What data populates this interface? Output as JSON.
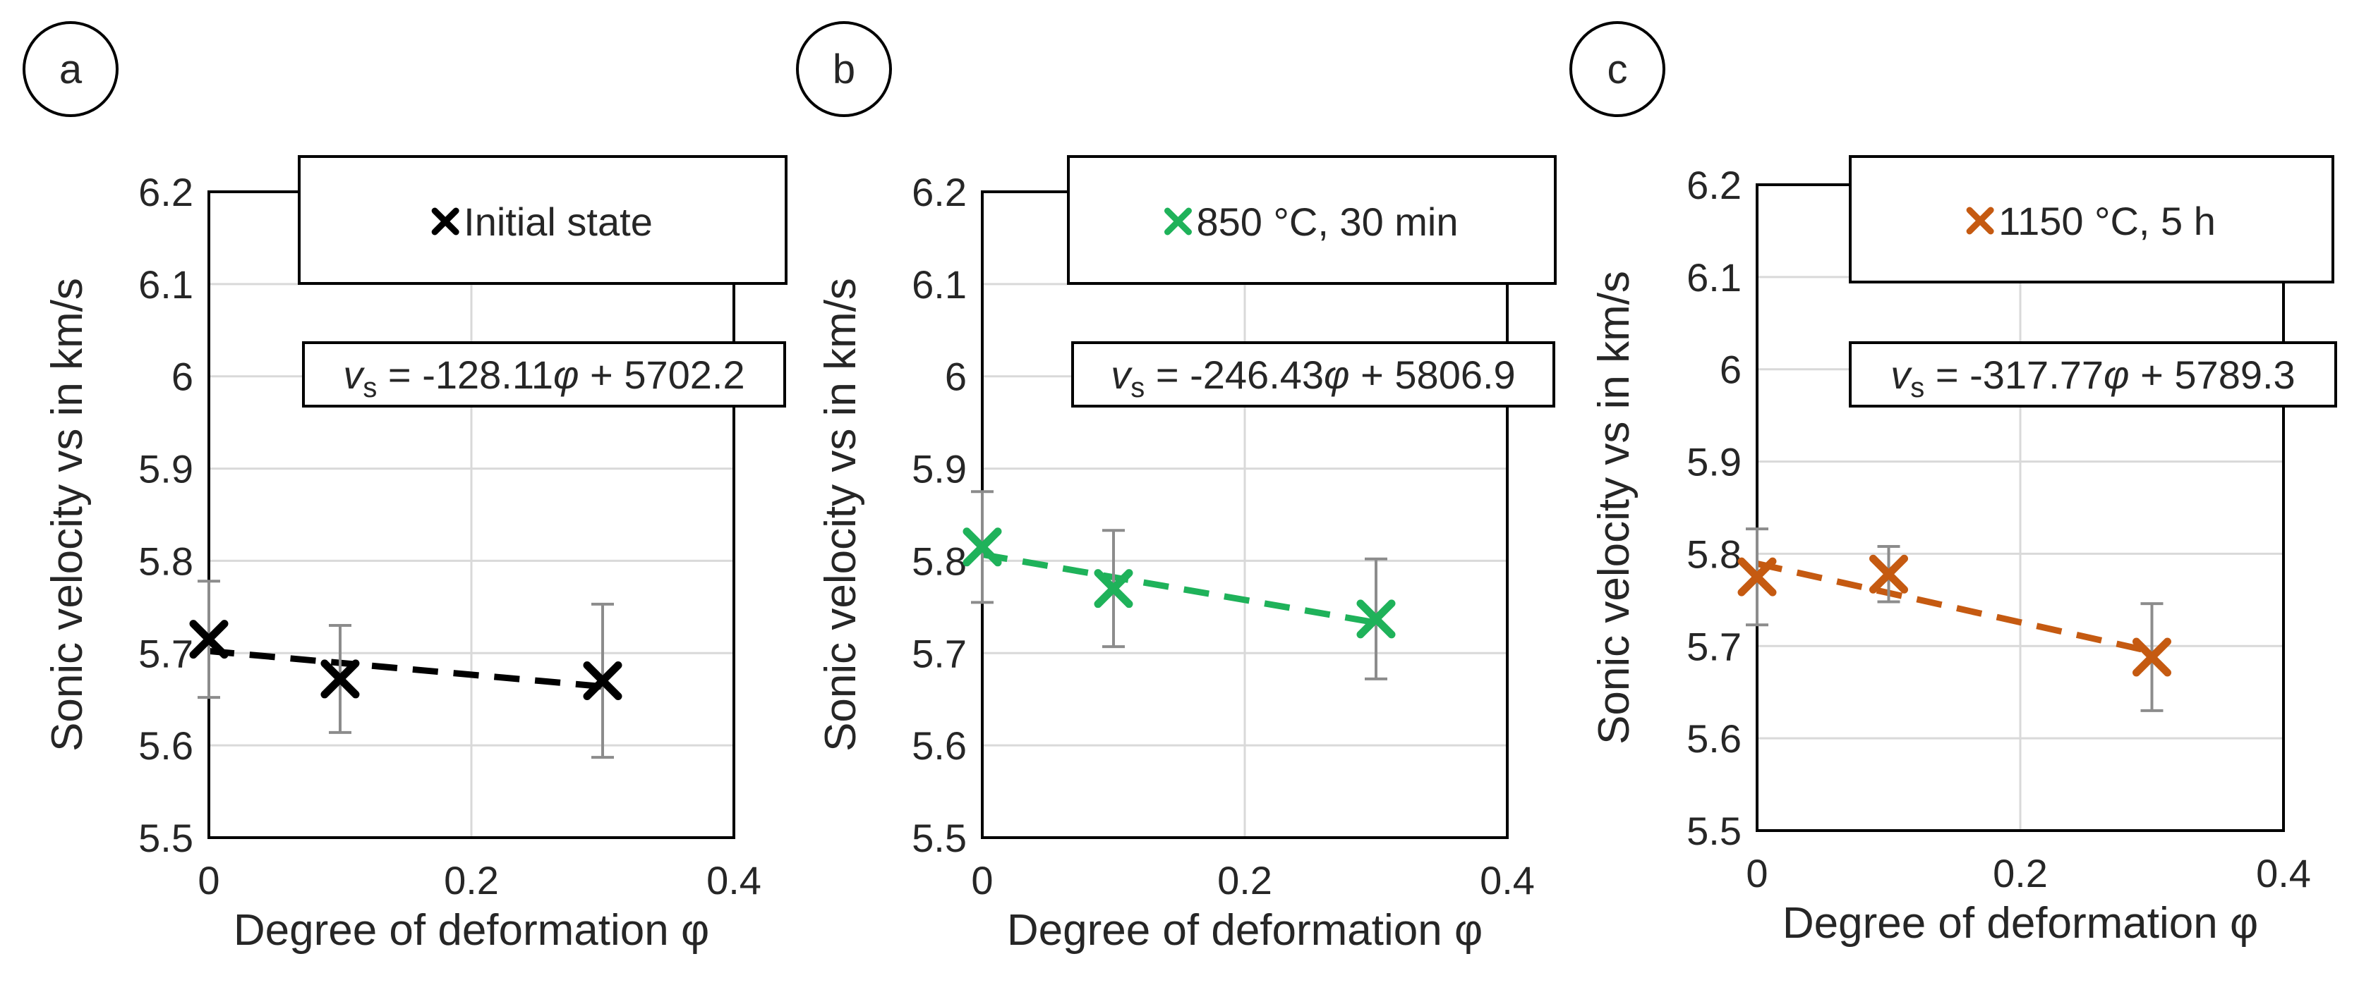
{
  "chart_data": [
    {
      "type": "scatter",
      "panel_label": "a",
      "legend": "Initial state",
      "color": "#000000",
      "equation": {
        "var": "v",
        "sub": "s",
        "mid": " = -128.11",
        "phi": "φ",
        "tail": " + 5702.2"
      },
      "fit": {
        "slope": -128.11,
        "intercept": 5702.2,
        "units": "m/s"
      },
      "xlabel": "Degree of deformation φ",
      "ylabel": "Sonic velocity vs in km/s",
      "xlim": [
        0,
        0.4
      ],
      "ylim": [
        5.5,
        6.2
      ],
      "xticks": [
        "0",
        "0.2",
        "0.4"
      ],
      "yticks": [
        "5.5",
        "5.6",
        "5.7",
        "5.8",
        "5.9",
        "6",
        "6.1",
        "6.2"
      ],
      "grid": true,
      "points": [
        {
          "x": 0,
          "y": 5.715,
          "err": 0.063
        },
        {
          "x": 0.1,
          "y": 5.672,
          "err": 0.058
        },
        {
          "x": 0.3,
          "y": 5.67,
          "err": 0.083
        }
      ]
    },
    {
      "type": "scatter",
      "panel_label": "b",
      "legend": "850 °C, 30 min",
      "color": "#1fb25a",
      "equation": {
        "var": "v",
        "sub": "s",
        "mid": " = -246.43",
        "phi": "φ",
        "tail": " + 5806.9"
      },
      "fit": {
        "slope": -246.43,
        "intercept": 5806.9,
        "units": "m/s"
      },
      "xlabel": "Degree of deformation φ",
      "ylabel": "Sonic velocity vs in km/s",
      "xlim": [
        0,
        0.4
      ],
      "ylim": [
        5.5,
        6.2
      ],
      "xticks": [
        "0",
        "0.2",
        "0.4"
      ],
      "yticks": [
        "5.5",
        "5.6",
        "5.7",
        "5.8",
        "5.9",
        "6",
        "6.1",
        "6.2"
      ],
      "grid": true,
      "points": [
        {
          "x": 0,
          "y": 5.815,
          "err": 0.06
        },
        {
          "x": 0.1,
          "y": 5.77,
          "err": 0.063
        },
        {
          "x": 0.3,
          "y": 5.737,
          "err": 0.065
        }
      ]
    },
    {
      "type": "scatter",
      "panel_label": "c",
      "legend": "1150 °C, 5 h",
      "color": "#c55a11",
      "equation": {
        "var": "v",
        "sub": "s",
        "mid": " = -317.77",
        "phi": "φ",
        "tail": " + 5789.3"
      },
      "fit": {
        "slope": -317.77,
        "intercept": 5789.3,
        "units": "m/s"
      },
      "xlabel": "Degree of deformation φ",
      "ylabel": "Sonic velocity vs in km/s",
      "xlim": [
        0,
        0.4
      ],
      "ylim": [
        5.5,
        6.2
      ],
      "xticks": [
        "0",
        "0.2",
        "0.4"
      ],
      "yticks": [
        "5.5",
        "5.6",
        "5.7",
        "5.8",
        "5.9",
        "6",
        "6.1",
        "6.2"
      ],
      "grid": true,
      "points": [
        {
          "x": 0,
          "y": 5.775,
          "err": 0.052
        },
        {
          "x": 0.1,
          "y": 5.778,
          "err": 0.03
        },
        {
          "x": 0.3,
          "y": 5.688,
          "err": 0.058
        }
      ]
    }
  ]
}
